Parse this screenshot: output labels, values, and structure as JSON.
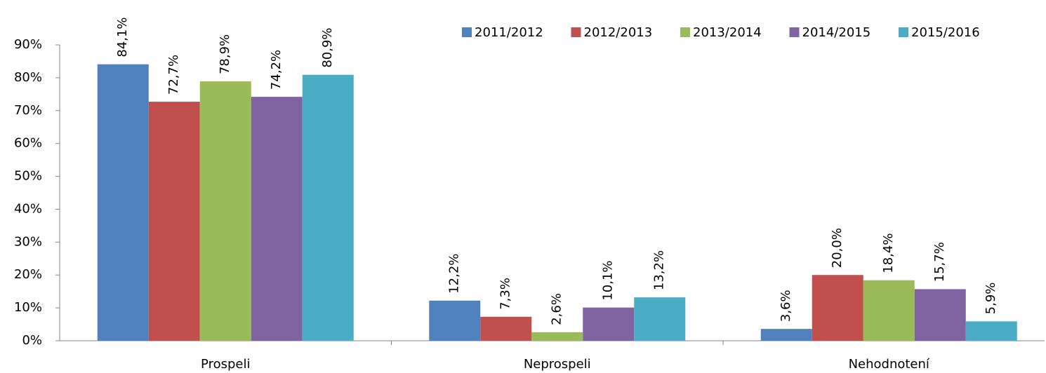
{
  "chart_data": {
    "type": "bar",
    "categories": [
      "Prospeli",
      "Neprospeli",
      "Nehodnotení"
    ],
    "series": [
      {
        "name": "2011/2012",
        "color": "#4f81bd",
        "values": [
          84.1,
          12.2,
          3.6
        ],
        "value_labels": [
          "84,1%",
          "12,2%",
          "3,6%"
        ]
      },
      {
        "name": "2012/2013",
        "color": "#c0504d",
        "values": [
          72.7,
          7.3,
          20.0
        ],
        "value_labels": [
          "72,7%",
          "7,3%",
          "20,0%"
        ]
      },
      {
        "name": "2013/2014",
        "color": "#9bbb59",
        "values": [
          78.9,
          2.6,
          18.4
        ],
        "value_labels": [
          "78,9%",
          "2,6%",
          "18,4%"
        ]
      },
      {
        "name": "2014/2015",
        "color": "#8064a2",
        "values": [
          74.2,
          10.1,
          15.7
        ],
        "value_labels": [
          "74,2%",
          "10,1%",
          "15,7%"
        ]
      },
      {
        "name": "2015/2016",
        "color": "#4bacc6",
        "values": [
          80.9,
          13.2,
          5.9
        ],
        "value_labels": [
          "80,9%",
          "13,2%",
          "5,9%"
        ]
      }
    ],
    "ylim": [
      0,
      90
    ],
    "yticks": [
      {
        "value": 0,
        "label": "0%"
      },
      {
        "value": 10,
        "label": "10%"
      },
      {
        "value": 20,
        "label": "20%"
      },
      {
        "value": 30,
        "label": "30%"
      },
      {
        "value": 40,
        "label": "40%"
      },
      {
        "value": 50,
        "label": "50%"
      },
      {
        "value": 60,
        "label": "60%"
      },
      {
        "value": 70,
        "label": "70%"
      },
      {
        "value": 80,
        "label": "80%"
      },
      {
        "value": 90,
        "label": "90%"
      }
    ],
    "legend": "top-right",
    "grid": false
  }
}
